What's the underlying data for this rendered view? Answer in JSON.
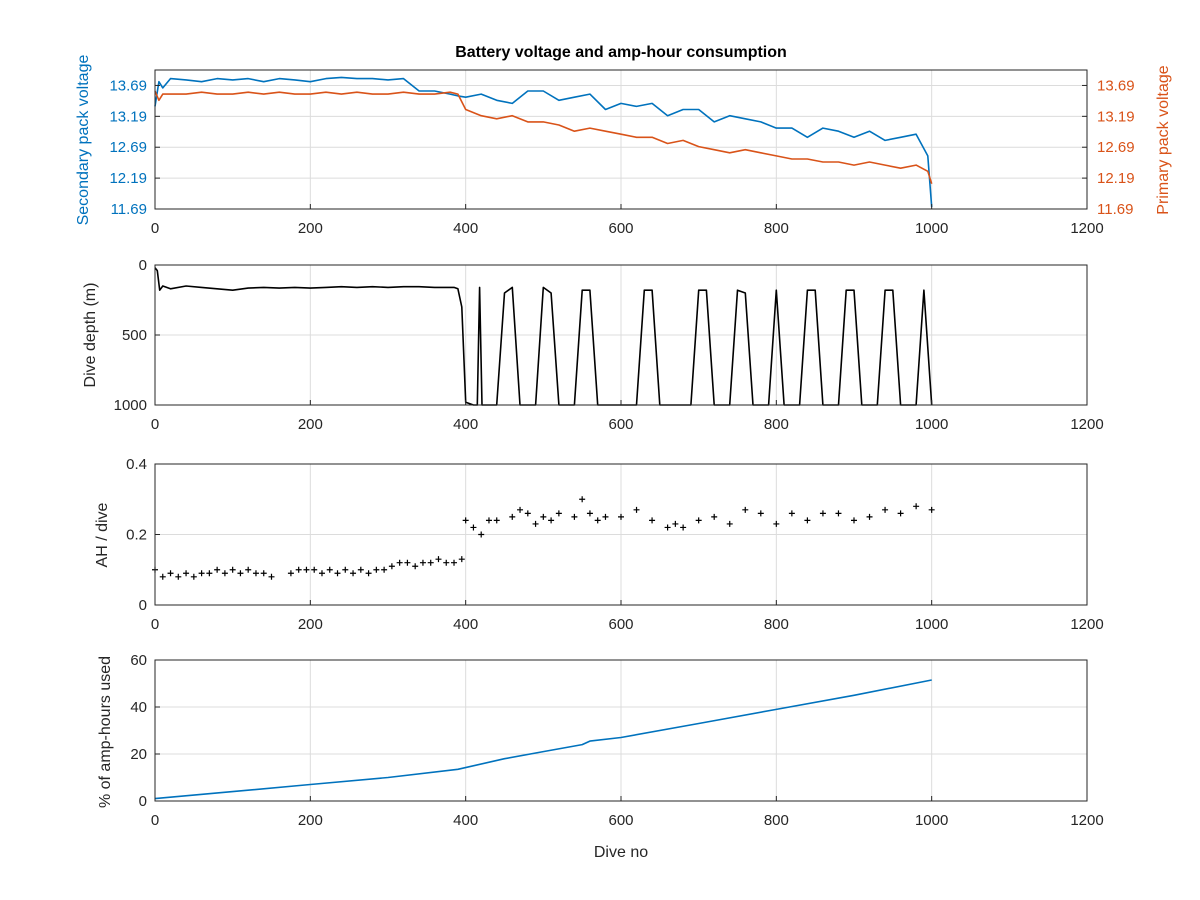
{
  "colors": {
    "blue": "#0072BD",
    "orange": "#D95319",
    "black": "#000000",
    "text": "#262626"
  },
  "chart_data": [
    {
      "type": "line",
      "title": "Battery voltage and amp-hour consumption",
      "xlabel": "",
      "ylabel_left": "Secondary pack voltage",
      "ylabel_right": "Primary pack voltage",
      "xlim": [
        0,
        1200
      ],
      "ylim_left": [
        11.69,
        13.94
      ],
      "ylim_right": [
        11.69,
        13.94
      ],
      "xticks": [
        "0",
        "200",
        "400",
        "600",
        "800",
        "1000",
        "1200"
      ],
      "yticks_left": [
        "11.69",
        "12.19",
        "12.69",
        "13.19",
        "13.69"
      ],
      "yticks_right": [
        "11.69",
        "12.19",
        "12.69",
        "13.19",
        "13.69"
      ],
      "grid": true,
      "series": [
        {
          "axis": "left",
          "color": "#0072BD",
          "x": [
            0,
            5,
            10,
            20,
            40,
            60,
            80,
            100,
            120,
            140,
            160,
            180,
            200,
            220,
            240,
            260,
            280,
            300,
            320,
            340,
            360,
            380,
            390,
            400,
            420,
            440,
            460,
            480,
            500,
            520,
            540,
            560,
            580,
            600,
            620,
            640,
            660,
            680,
            700,
            720,
            740,
            760,
            780,
            800,
            820,
            840,
            860,
            880,
            900,
            920,
            940,
            960,
            980,
            995,
            1000
          ],
          "y": [
            13.35,
            13.75,
            13.65,
            13.8,
            13.78,
            13.75,
            13.8,
            13.78,
            13.8,
            13.75,
            13.8,
            13.78,
            13.75,
            13.8,
            13.82,
            13.8,
            13.8,
            13.78,
            13.8,
            13.6,
            13.6,
            13.55,
            13.52,
            13.5,
            13.55,
            13.45,
            13.4,
            13.6,
            13.6,
            13.45,
            13.5,
            13.55,
            13.3,
            13.4,
            13.35,
            13.4,
            13.2,
            13.3,
            13.3,
            13.1,
            13.2,
            13.15,
            13.1,
            13.0,
            13.0,
            12.85,
            13.0,
            12.95,
            12.85,
            12.95,
            12.8,
            12.85,
            12.9,
            12.55,
            11.72
          ]
        },
        {
          "axis": "right",
          "color": "#D95319",
          "x": [
            0,
            5,
            10,
            20,
            40,
            60,
            80,
            100,
            120,
            140,
            160,
            180,
            200,
            220,
            240,
            260,
            280,
            300,
            320,
            340,
            360,
            380,
            390,
            400,
            420,
            440,
            460,
            480,
            500,
            520,
            540,
            560,
            580,
            600,
            620,
            640,
            660,
            680,
            700,
            720,
            740,
            760,
            780,
            800,
            820,
            840,
            860,
            880,
            900,
            920,
            940,
            960,
            980,
            995,
            1000
          ],
          "y": [
            13.6,
            13.45,
            13.55,
            13.55,
            13.55,
            13.58,
            13.55,
            13.55,
            13.58,
            13.55,
            13.58,
            13.55,
            13.55,
            13.58,
            13.55,
            13.58,
            13.55,
            13.55,
            13.58,
            13.55,
            13.55,
            13.58,
            13.55,
            13.3,
            13.2,
            13.15,
            13.2,
            13.1,
            13.1,
            13.05,
            12.95,
            13.0,
            12.95,
            12.9,
            12.85,
            12.85,
            12.75,
            12.8,
            12.7,
            12.65,
            12.6,
            12.65,
            12.6,
            12.55,
            12.5,
            12.5,
            12.45,
            12.45,
            12.4,
            12.45,
            12.4,
            12.35,
            12.4,
            12.3,
            12.1
          ]
        }
      ]
    },
    {
      "type": "line",
      "title": "",
      "xlabel": "",
      "ylabel": "Dive depth (m)",
      "xlim": [
        0,
        1200
      ],
      "ylim": [
        0,
        1000
      ],
      "y_reversed": true,
      "xticks": [
        "0",
        "200",
        "400",
        "600",
        "800",
        "1000",
        "1200"
      ],
      "yticks": [
        "0",
        "500",
        "1000"
      ],
      "grid": true,
      "series": [
        {
          "color": "#000000",
          "x": [
            0,
            3,
            6,
            10,
            20,
            40,
            60,
            80,
            100,
            120,
            140,
            160,
            180,
            200,
            220,
            240,
            260,
            280,
            300,
            320,
            340,
            360,
            375,
            385,
            390,
            395,
            400,
            410,
            415,
            418,
            421,
            425,
            440,
            450,
            460,
            470,
            480,
            490,
            500,
            510,
            520,
            530,
            540,
            550,
            560,
            570,
            580,
            590,
            600,
            610,
            620,
            630,
            640,
            650,
            660,
            670,
            680,
            690,
            700,
            710,
            720,
            730,
            740,
            750,
            760,
            770,
            780,
            790,
            800,
            810,
            820,
            830,
            840,
            850,
            860,
            870,
            880,
            890,
            900,
            910,
            920,
            930,
            940,
            950,
            960,
            970,
            980,
            990,
            1000
          ],
          "y": [
            20,
            40,
            180,
            150,
            170,
            150,
            160,
            170,
            180,
            165,
            160,
            165,
            160,
            165,
            160,
            155,
            160,
            155,
            160,
            155,
            155,
            160,
            160,
            160,
            170,
            300,
            980,
            1000,
            1000,
            160,
            1000,
            1000,
            1000,
            200,
            160,
            1000,
            1000,
            1000,
            160,
            200,
            1000,
            1000,
            1000,
            180,
            180,
            1000,
            1000,
            1000,
            1000,
            1000,
            1000,
            180,
            180,
            1000,
            1000,
            1000,
            1000,
            1000,
            180,
            180,
            1000,
            1000,
            1000,
            180,
            200,
            1000,
            1000,
            1000,
            180,
            1000,
            1000,
            1000,
            180,
            180,
            1000,
            1000,
            1000,
            180,
            180,
            1000,
            1000,
            1000,
            180,
            180,
            1000,
            1000,
            1000,
            180,
            1000
          ]
        }
      ]
    },
    {
      "type": "scatter",
      "title": "",
      "xlabel": "",
      "ylabel": "AH / dive",
      "xlim": [
        0,
        1200
      ],
      "ylim": [
        0,
        0.4
      ],
      "xticks": [
        "0",
        "200",
        "400",
        "600",
        "800",
        "1000",
        "1200"
      ],
      "yticks": [
        "0",
        "0.2",
        "0.4"
      ],
      "grid": true,
      "series": [
        {
          "color": "#000000",
          "marker": "+",
          "x": [
            0,
            10,
            20,
            30,
            40,
            50,
            60,
            70,
            80,
            90,
            100,
            110,
            120,
            130,
            140,
            150,
            175,
            185,
            195,
            205,
            215,
            225,
            235,
            245,
            255,
            265,
            275,
            285,
            295,
            305,
            315,
            325,
            335,
            345,
            355,
            365,
            375,
            385,
            395,
            400,
            410,
            420,
            430,
            440,
            460,
            470,
            480,
            490,
            500,
            510,
            520,
            540,
            550,
            560,
            570,
            580,
            600,
            620,
            640,
            660,
            670,
            680,
            700,
            720,
            740,
            760,
            780,
            800,
            820,
            840,
            860,
            880,
            900,
            920,
            940,
            960,
            980,
            1000
          ],
          "y": [
            0.1,
            0.08,
            0.09,
            0.08,
            0.09,
            0.08,
            0.09,
            0.09,
            0.1,
            0.09,
            0.1,
            0.09,
            0.1,
            0.09,
            0.09,
            0.08,
            0.09,
            0.1,
            0.1,
            0.1,
            0.09,
            0.1,
            0.09,
            0.1,
            0.09,
            0.1,
            0.09,
            0.1,
            0.1,
            0.11,
            0.12,
            0.12,
            0.11,
            0.12,
            0.12,
            0.13,
            0.12,
            0.12,
            0.13,
            0.24,
            0.22,
            0.2,
            0.24,
            0.24,
            0.25,
            0.27,
            0.26,
            0.23,
            0.25,
            0.24,
            0.26,
            0.25,
            0.3,
            0.26,
            0.24,
            0.25,
            0.25,
            0.27,
            0.24,
            0.22,
            0.23,
            0.22,
            0.24,
            0.25,
            0.23,
            0.27,
            0.26,
            0.23,
            0.26,
            0.24,
            0.26,
            0.26,
            0.24,
            0.25,
            0.27,
            0.26,
            0.28,
            0.27
          ]
        }
      ]
    },
    {
      "type": "line",
      "title": "",
      "xlabel": "Dive no",
      "ylabel": "% of amp-hours used",
      "xlim": [
        0,
        1200
      ],
      "ylim": [
        0,
        60
      ],
      "xticks": [
        "0",
        "200",
        "400",
        "600",
        "800",
        "1000",
        "1200"
      ],
      "yticks": [
        "0",
        "20",
        "40",
        "60"
      ],
      "grid": true,
      "series": [
        {
          "color": "#0072BD",
          "x": [
            0,
            100,
            200,
            300,
            390,
            450,
            500,
            550,
            560,
            600,
            700,
            800,
            900,
            1000
          ],
          "y": [
            1,
            4,
            7,
            10,
            13.5,
            18,
            21,
            24,
            25.5,
            27,
            33,
            39,
            45,
            51.5
          ]
        }
      ]
    }
  ]
}
